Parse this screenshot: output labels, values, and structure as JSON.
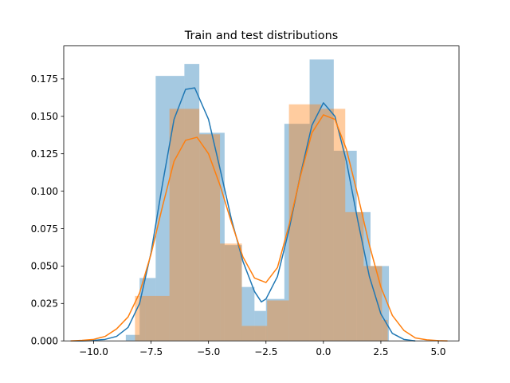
{
  "chart_data": {
    "type": "histogram",
    "title": "Train and test distributions",
    "xlabel": "",
    "ylabel": "",
    "xlim": [
      -11.3,
      5.9
    ],
    "ylim": [
      0,
      0.197
    ],
    "xticks": [
      -10.0,
      -7.5,
      -5.0,
      -2.5,
      0.0,
      2.5,
      5.0
    ],
    "xtick_labels": [
      "−10.0",
      "−7.5",
      "−5.0",
      "−2.5",
      "0.0",
      "2.5",
      "5.0"
    ],
    "yticks": [
      0.0,
      0.025,
      0.05,
      0.075,
      0.1,
      0.125,
      0.15,
      0.175
    ],
    "ytick_labels": [
      "0.000",
      "0.025",
      "0.050",
      "0.075",
      "0.100",
      "0.125",
      "0.150",
      "0.175"
    ],
    "grid": false,
    "legend": false,
    "series": [
      {
        "color": "#1f77b4",
        "bins": [
          {
            "x0": -8.6,
            "x1": -8.0,
            "value": 0.004
          },
          {
            "x0": -8.0,
            "x1": -7.3,
            "value": 0.042
          },
          {
            "x0": -7.3,
            "x1": -6.05,
            "value": 0.177
          },
          {
            "x0": -6.05,
            "x1": -5.4,
            "value": 0.185
          },
          {
            "x0": -5.4,
            "x1": -4.3,
            "value": 0.139
          },
          {
            "x0": -4.3,
            "x1": -3.55,
            "value": 0.064
          },
          {
            "x0": -3.55,
            "x1": -3.0,
            "value": 0.036
          },
          {
            "x0": -3.0,
            "x1": -2.5,
            "value": 0.02
          },
          {
            "x0": -2.5,
            "x1": -1.7,
            "value": 0.028
          },
          {
            "x0": -1.7,
            "x1": -0.6,
            "value": 0.145
          },
          {
            "x0": -0.6,
            "x1": 0.45,
            "value": 0.188
          },
          {
            "x0": 0.45,
            "x1": 1.45,
            "value": 0.127
          },
          {
            "x0": 1.45,
            "x1": 2.05,
            "value": 0.086
          },
          {
            "x0": 2.05,
            "x1": 2.85,
            "value": 0.05
          }
        ],
        "kde": {
          "x": [
            -11.0,
            -10.5,
            -10.0,
            -9.5,
            -9.0,
            -8.5,
            -8.0,
            -7.5,
            -7.0,
            -6.5,
            -6.0,
            -5.6,
            -5.0,
            -4.5,
            -4.0,
            -3.5,
            -3.0,
            -2.7,
            -2.5,
            -2.0,
            -1.5,
            -1.0,
            -0.5,
            0.0,
            0.5,
            1.0,
            1.5,
            2.0,
            2.5,
            3.0,
            3.5,
            4.0
          ],
          "y": [
            0.0,
            0.0,
            0.0003,
            0.001,
            0.003,
            0.009,
            0.025,
            0.059,
            0.105,
            0.148,
            0.168,
            0.169,
            0.148,
            0.115,
            0.081,
            0.053,
            0.033,
            0.026,
            0.028,
            0.043,
            0.074,
            0.111,
            0.144,
            0.159,
            0.15,
            0.12,
            0.08,
            0.043,
            0.018,
            0.005,
            0.001,
            0.0
          ]
        }
      },
      {
        "color": "#ff7f0e",
        "bins": [
          {
            "x0": -8.2,
            "x1": -7.75,
            "value": 0.03
          },
          {
            "x0": -7.75,
            "x1": -6.7,
            "value": 0.03
          },
          {
            "x0": -6.7,
            "x1": -5.4,
            "value": 0.155
          },
          {
            "x0": -5.4,
            "x1": -4.5,
            "value": 0.138
          },
          {
            "x0": -4.5,
            "x1": -3.55,
            "value": 0.065
          },
          {
            "x0": -3.55,
            "x1": -2.45,
            "value": 0.01
          },
          {
            "x0": -2.45,
            "x1": -1.5,
            "value": 0.027
          },
          {
            "x0": -1.5,
            "x1": -0.1,
            "value": 0.158
          },
          {
            "x0": -0.1,
            "x1": 0.95,
            "value": 0.155
          },
          {
            "x0": 0.95,
            "x1": 1.75,
            "value": 0.086
          },
          {
            "x0": 1.75,
            "x1": 2.55,
            "value": 0.05
          },
          {
            "x0": 2.55,
            "x1": 2.8,
            "value": 0.014
          }
        ],
        "kde": {
          "x": [
            -11.0,
            -10.5,
            -10.0,
            -9.5,
            -9.0,
            -8.5,
            -8.0,
            -7.5,
            -7.0,
            -6.5,
            -6.0,
            -5.5,
            -5.0,
            -4.5,
            -4.0,
            -3.5,
            -3.0,
            -2.5,
            -2.0,
            -1.5,
            -1.0,
            -0.5,
            0.0,
            0.5,
            1.0,
            1.5,
            2.0,
            2.5,
            3.0,
            3.5,
            4.0,
            4.5,
            5.0,
            5.4
          ],
          "y": [
            0.0,
            0.0004,
            0.001,
            0.003,
            0.008,
            0.016,
            0.032,
            0.058,
            0.09,
            0.12,
            0.134,
            0.136,
            0.125,
            0.104,
            0.079,
            0.056,
            0.042,
            0.039,
            0.049,
            0.077,
            0.11,
            0.139,
            0.151,
            0.148,
            0.128,
            0.097,
            0.064,
            0.036,
            0.017,
            0.007,
            0.002,
            0.0007,
            0.0002,
            0.0
          ]
        }
      }
    ]
  }
}
